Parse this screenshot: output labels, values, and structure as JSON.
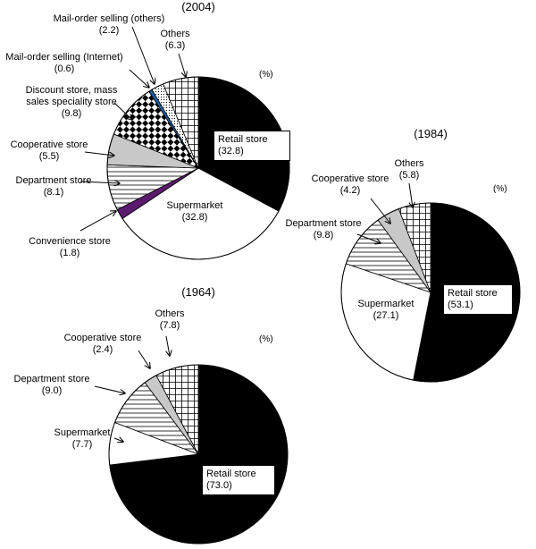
{
  "chart_data": [
    {
      "type": "pie",
      "title": "(2004)",
      "unit": "(%)",
      "categories": [
        "Retail store",
        "Supermarket",
        "Convenience store",
        "Department store",
        "Cooperative store",
        "Discount store, mass sales speciality store",
        "Mail-order selling (Internet)",
        "Mail-order selling (others)",
        "Others"
      ],
      "values": [
        32.8,
        32.8,
        1.8,
        8.1,
        5.5,
        9.8,
        0.6,
        2.2,
        6.3
      ],
      "value_labels": [
        "(32.8)",
        "(32.8)",
        "(1.8)",
        "(8.1)",
        "(5.5)",
        "(9.8)",
        "(0.6)",
        "(2.2)",
        "(6.3)"
      ],
      "fills": [
        "#000000",
        "#ffffff",
        "#5b1a6e",
        "horizontal-lines",
        "#c8c8c8",
        "checker",
        "#1f5fa8",
        "dots",
        "grid"
      ]
    },
    {
      "type": "pie",
      "title": "(1984)",
      "unit": "(%)",
      "categories": [
        "Retail store",
        "Supermarket",
        "Department store",
        "Cooperative store",
        "Others"
      ],
      "values": [
        53.1,
        27.1,
        9.8,
        4.2,
        5.8
      ],
      "value_labels": [
        "(53.1)",
        "(27.1)",
        "(9.8)",
        "(4.2)",
        "(5.8)"
      ],
      "fills": [
        "#000000",
        "#ffffff",
        "horizontal-lines",
        "#c8c8c8",
        "grid"
      ]
    },
    {
      "type": "pie",
      "title": "(1964)",
      "unit": "(%)",
      "categories": [
        "Retail store",
        "Supermarket",
        "Department store",
        "Cooperative store",
        "Others"
      ],
      "values": [
        73.0,
        7.7,
        9.0,
        2.4,
        7.8
      ],
      "value_labels": [
        "(73.0)",
        "(7.7)",
        "(9.0)",
        "(2.4)",
        "(7.8)"
      ],
      "fills": [
        "#000000",
        "#ffffff",
        "horizontal-lines",
        "#c8c8c8",
        "grid"
      ]
    }
  ]
}
